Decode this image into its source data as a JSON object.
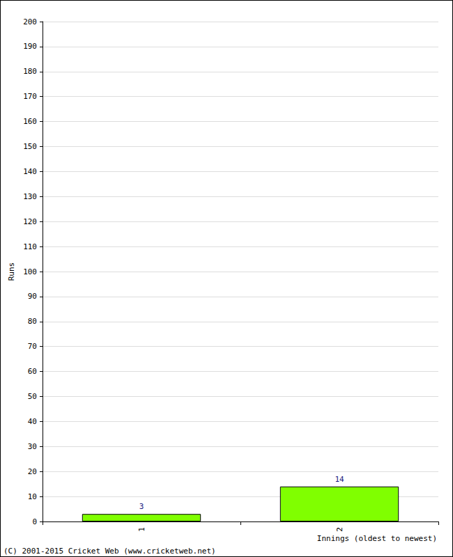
{
  "chart_data": {
    "type": "bar",
    "categories": [
      "1",
      "2"
    ],
    "values": [
      3,
      14
    ],
    "color": "#80ff00",
    "xlabel": "Innings (oldest to newest)",
    "ylabel": "Runs",
    "ylim": [
      0,
      200
    ],
    "yticks": [
      0,
      10,
      20,
      30,
      40,
      50,
      60,
      70,
      80,
      90,
      100,
      110,
      120,
      130,
      140,
      150,
      160,
      170,
      180,
      190,
      200
    ],
    "grid": true,
    "data_labels": true,
    "annotations": [
      "(C) 2001-2015 Cricket Web (www.cricketweb.net)"
    ]
  }
}
